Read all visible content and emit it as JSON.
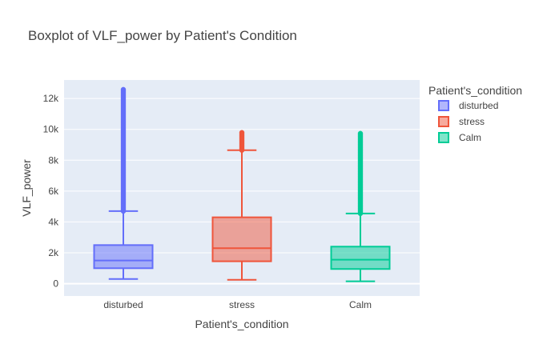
{
  "chart_data": {
    "type": "box",
    "title": "Boxplot of VLF_power by Patient's Condition",
    "xlabel": "Patient's_condition",
    "ylabel": "VLF_power",
    "categories": [
      "disturbed",
      "stress",
      "Calm"
    ],
    "ylim": [
      -800,
      13200
    ],
    "yticks": [
      0,
      2000,
      4000,
      6000,
      8000,
      10000,
      12000
    ],
    "ytick_labels": [
      "0",
      "2k",
      "4k",
      "6k",
      "8k",
      "10k",
      "12k"
    ],
    "grid": true,
    "legend_title": "Patient's_condition",
    "legend_position": "right",
    "series": [
      {
        "name": "disturbed",
        "color": "#636efa",
        "min": 300,
        "q1": 1000,
        "median": 1500,
        "q3": 2500,
        "max": 4700,
        "outliers_from": 4700,
        "outliers_to": 12600
      },
      {
        "name": "stress",
        "color": "#ef553b",
        "min": 250,
        "q1": 1450,
        "median": 2300,
        "q3": 4300,
        "max": 8650,
        "outliers_from": 8650,
        "outliers_to": 9800
      },
      {
        "name": "Calm",
        "color": "#00cc96",
        "min": 150,
        "q1": 950,
        "median": 1550,
        "q3": 2400,
        "max": 4550,
        "outliers_from": 4550,
        "outliers_to": 9800
      }
    ]
  }
}
